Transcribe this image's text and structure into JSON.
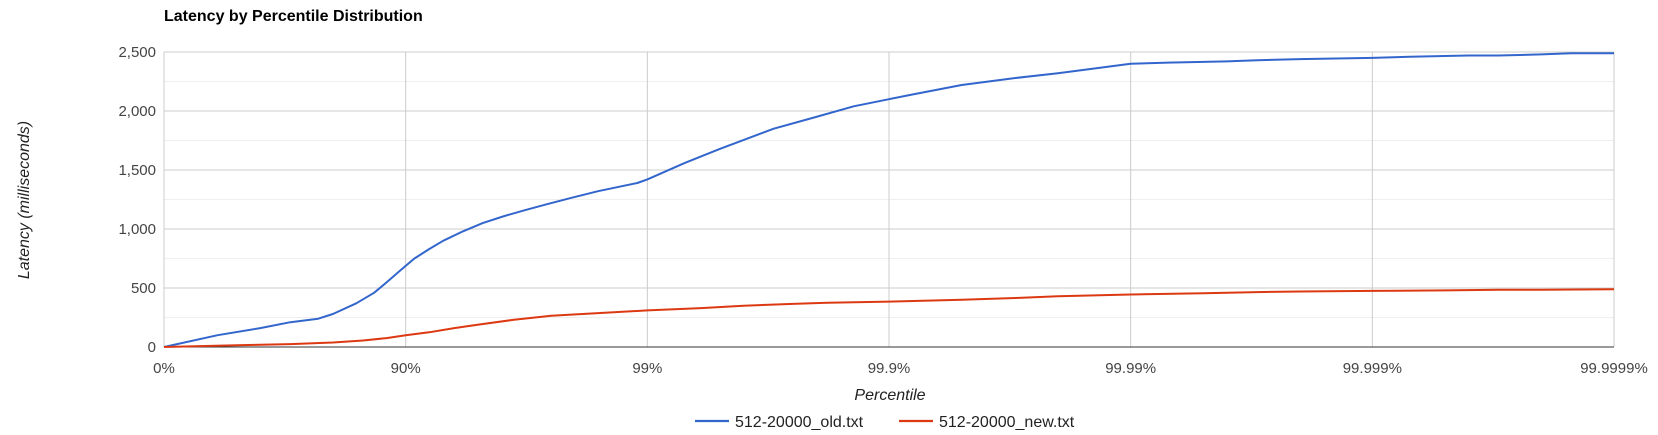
{
  "chart_data": {
    "type": "line",
    "title": "Latency by Percentile Distribution",
    "xlabel": "Percentile",
    "ylabel": "Latency (milliseconds)",
    "x_scale": "inverse-percentile-log",
    "x_tick_labels": [
      "0%",
      "90%",
      "99%",
      "99.9%",
      "99.99%",
      "99.999%",
      "99.9999%"
    ],
    "y_ticks": [
      0,
      500,
      1000,
      1500,
      2000,
      2500
    ],
    "y_tick_labels": [
      "0",
      "500",
      "1,000",
      "1,500",
      "2,000",
      "2,500"
    ],
    "ylim": [
      0,
      2500
    ],
    "grid": true,
    "legend_position": "bottom",
    "series": [
      {
        "name": "512-20000_old.txt",
        "color": "#3366cc",
        "points": [
          [
            "0%",
            0
          ],
          [
            "40%",
            100
          ],
          [
            "60%",
            160
          ],
          [
            "70%",
            210
          ],
          [
            "77%",
            240
          ],
          [
            "80%",
            280
          ],
          [
            "84%",
            370
          ],
          [
            "86.5%",
            460
          ],
          [
            "88.2%",
            560
          ],
          [
            "89.5%",
            650
          ],
          [
            "90.8%",
            750
          ],
          [
            "92%",
            830
          ],
          [
            "93%",
            900
          ],
          [
            "94.2%",
            980
          ],
          [
            "95.2%",
            1050
          ],
          [
            "96.1%",
            1110
          ],
          [
            "96.8%",
            1160
          ],
          [
            "97.4%",
            1210
          ],
          [
            "97.9%",
            1260
          ],
          [
            "98.4%",
            1320
          ],
          [
            "98.9%",
            1390
          ],
          [
            "99%",
            1420
          ],
          [
            "99.3%",
            1560
          ],
          [
            "99.5%",
            1680
          ],
          [
            "99.7%",
            1850
          ],
          [
            "99.8%",
            1950
          ],
          [
            "99.86%",
            2040
          ],
          [
            "99.9%",
            2100
          ],
          [
            "99.92%",
            2140
          ],
          [
            "99.95%",
            2220
          ],
          [
            "99.97%",
            2280
          ],
          [
            "99.98%",
            2320
          ],
          [
            "99.99%",
            2400
          ],
          [
            "99.993%",
            2410
          ],
          [
            "99.996%",
            2420
          ],
          [
            "99.997%",
            2430
          ],
          [
            "99.998%",
            2440
          ],
          [
            "99.999%",
            2450
          ],
          [
            "99.9993%",
            2460
          ],
          [
            "99.9996%",
            2470
          ],
          [
            "99.9997%",
            2470
          ],
          [
            "99.9998%",
            2480
          ],
          [
            "99.99985%",
            2490
          ],
          [
            "99.9999%",
            2490
          ],
          [
            "99.99994%",
            2490
          ],
          [
            "99.999955%",
            2490
          ]
        ]
      },
      {
        "name": "512-20000_new.txt",
        "color": "#dc3912",
        "points": [
          [
            "0%",
            0
          ],
          [
            "50%",
            15
          ],
          [
            "70%",
            25
          ],
          [
            "80%",
            38
          ],
          [
            "85%",
            55
          ],
          [
            "88%",
            75
          ],
          [
            "90%",
            100
          ],
          [
            "92%",
            125
          ],
          [
            "93.7%",
            160
          ],
          [
            "95%",
            190
          ],
          [
            "96.4%",
            230
          ],
          [
            "97.5%",
            265
          ],
          [
            "98.5%",
            290
          ],
          [
            "99%",
            310
          ],
          [
            "99.4%",
            330
          ],
          [
            "99.6%",
            350
          ],
          [
            "99.75%",
            365
          ],
          [
            "99.82%",
            375
          ],
          [
            "99.9%",
            385
          ],
          [
            "99.95%",
            400
          ],
          [
            "99.97%",
            415
          ],
          [
            "99.98%",
            430
          ],
          [
            "99.99%",
            445
          ],
          [
            "99.995%",
            455
          ],
          [
            "99.997%",
            465
          ],
          [
            "99.998%",
            470
          ],
          [
            "99.999%",
            475
          ],
          [
            "99.9995%",
            480
          ],
          [
            "99.9997%",
            485
          ],
          [
            "99.9998%",
            485
          ],
          [
            "99.9999%",
            490
          ]
        ]
      }
    ]
  }
}
